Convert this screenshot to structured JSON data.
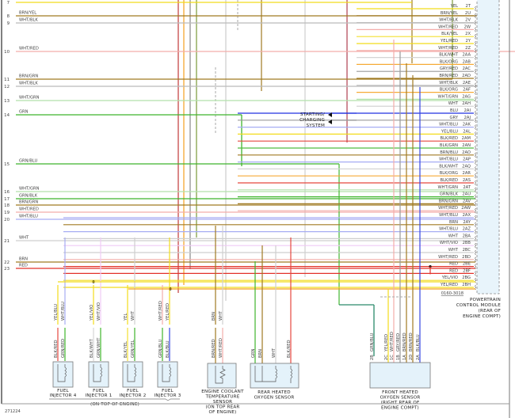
{
  "wire_colors": {
    "YEL": "#f2dc1a",
    "BRN": "#a07a22",
    "WHT": "#cfcfcf",
    "RED": "#e2322a",
    "BLK": "#555555",
    "GRN": "#3fb52c",
    "BLU": "#2030e0",
    "GRY": "#9a9a9a",
    "ORG": "#f5a020",
    "VIO": "#d87ae6"
  },
  "left_wires": [
    {
      "num": "7",
      "label": "",
      "color": "YEL"
    },
    {
      "num": "8",
      "label": "BRN/YEL",
      "color": "BRN/YEL"
    },
    {
      "num": "9",
      "label": "WHT/BLK",
      "color": "WHT/BLK"
    },
    {
      "num": "10",
      "label": "WHT/RED",
      "color": "WHT/RED"
    },
    {
      "num": "11",
      "label": "BRN/GRN",
      "color": "BRN/GRN"
    },
    {
      "num": "12",
      "label": "WHT/BLK",
      "color": "WHT/BLK"
    },
    {
      "num": "13",
      "label": "WHT/GRN",
      "color": "WHT/GRN"
    },
    {
      "num": "14",
      "label": "GRN",
      "color": "GRN"
    },
    {
      "num": "15",
      "label": "GRN/BLU",
      "color": "GRN/BLU"
    },
    {
      "num": "16",
      "label": "WHT/GRN",
      "color": "WHT/GRN"
    },
    {
      "num": "17",
      "label": "GRN/BLK",
      "color": "GRN/BLK"
    },
    {
      "num": "18",
      "label": "BRN/GRN",
      "color": "BRN/GRN"
    },
    {
      "num": "19",
      "label": "WHT/RED",
      "color": "WHT/RED"
    },
    {
      "num": "20",
      "label": "WHT/BLU",
      "color": "WHT/BLU"
    },
    {
      "num": "21",
      "label": "WHT",
      "color": "WHT"
    },
    {
      "num": "22",
      "label": "BRN",
      "color": "BRN"
    },
    {
      "num": "23",
      "label": "RED",
      "color": "RED"
    }
  ],
  "pcm": {
    "title": "POWERTRAIN",
    "title2": "CONTROL MODULE",
    "title3": "(REAR OF",
    "title4": "ENGINE COMPT)",
    "connector_id": "0160-3018",
    "pins": [
      {
        "pin": "2T",
        "wire": "YEL"
      },
      {
        "pin": "2U",
        "wire": "BRN/YEL"
      },
      {
        "pin": "2V",
        "wire": "WHT/BLK"
      },
      {
        "pin": "2W",
        "wire": "WHT/RED"
      },
      {
        "pin": "2X",
        "wire": "BLK/YEL"
      },
      {
        "pin": "2Y",
        "wire": "YEL/RED"
      },
      {
        "pin": "2Z",
        "wire": "WHT/RED"
      },
      {
        "pin": "2AA",
        "wire": "BLK/WHT"
      },
      {
        "pin": "2AB",
        "wire": "BLK/ORG"
      },
      {
        "pin": "2AC",
        "wire": "GRY/RED"
      },
      {
        "pin": "2AD",
        "wire": "BRN/RED"
      },
      {
        "pin": "2AE",
        "wire": "WHT/BLK"
      },
      {
        "pin": "2AF",
        "wire": "BLK/ORG"
      },
      {
        "pin": "2AG",
        "wire": "WHT/GRN"
      },
      {
        "pin": "2AH",
        "wire": "WHT"
      },
      {
        "pin": "2AI",
        "wire": "BLU"
      },
      {
        "pin": "2AJ",
        "wire": "GRY"
      },
      {
        "pin": "2AK",
        "wire": "WHT/BLU"
      },
      {
        "pin": "2AL",
        "wire": "YEL/BLU"
      },
      {
        "pin": "2AM",
        "wire": "BLK/RED"
      },
      {
        "pin": "2AN",
        "wire": "BLK/GRN"
      },
      {
        "pin": "2AO",
        "wire": "BRN/BLU"
      },
      {
        "pin": "2AP",
        "wire": "WHT/BLU"
      },
      {
        "pin": "2AQ",
        "wire": "BLK/WHT"
      },
      {
        "pin": "2AR",
        "wire": "BLK/ORG"
      },
      {
        "pin": "2AS",
        "wire": "BLK/RED"
      },
      {
        "pin": "2AT",
        "wire": "WHT/GRN"
      },
      {
        "pin": "2AU",
        "wire": "GRN/BLK"
      },
      {
        "pin": "2AV",
        "wire": "BRN/GRN"
      },
      {
        "pin": "2AW",
        "wire": "WHT/RED"
      },
      {
        "pin": "2AX",
        "wire": "WHT/BLU"
      },
      {
        "pin": "2AY",
        "wire": "BRN"
      },
      {
        "pin": "2AZ",
        "wire": "WHT/BLU"
      },
      {
        "pin": "2BA",
        "wire": "WHT"
      },
      {
        "pin": "2BB",
        "wire": "WHT/VIO"
      },
      {
        "pin": "2BC",
        "wire": "WHT"
      },
      {
        "pin": "2BD",
        "wire": "WHT/RED"
      },
      {
        "pin": "2BE",
        "wire": "RED"
      },
      {
        "pin": "2BF",
        "wire": "RED"
      },
      {
        "pin": "2BG",
        "wire": "YEL/VIO"
      },
      {
        "pin": "2BH",
        "wire": "YEL/RED"
      }
    ]
  },
  "starting_charging": {
    "line1": "STARTING/",
    "line2": "CHARGING",
    "line3": "SYSTEM"
  },
  "injectors": [
    {
      "name": "FUEL",
      "name2": "INJECTOR 4",
      "upper": [
        "YEL/BLU",
        "WHT/BLU"
      ],
      "lower": [
        "BLK/RED",
        "GRN/RED"
      ]
    },
    {
      "name": "FUEL",
      "name2": "INJECTOR 1",
      "upper": [
        "YEL/VIO",
        "WHT/VIO"
      ],
      "lower": [
        "BLK/WHT",
        "GRN/WHT"
      ]
    },
    {
      "name": "FUEL",
      "name2": "INJECTOR 2",
      "upper": [
        "YEL",
        "WHT"
      ],
      "lower": [
        "BLK/YEL",
        "GRN/YEL"
      ]
    },
    {
      "name": "FUEL",
      "name2": "INJECTOR 3",
      "upper": [
        "WHT/RED",
        "YEL/RED"
      ],
      "lower": [
        "GRN/BLU",
        "BLK/BLU"
      ]
    }
  ],
  "injector_location": "(ON TOP OF ENGINE)",
  "ect_sensor": {
    "lines": [
      "ENGINE COOLANT",
      "TEMPERATURE",
      "SENSOR",
      "(ON TOP REAR",
      "OF ENGINE)"
    ],
    "upper": [
      "BRN",
      "WHT"
    ],
    "lower": [
      "BRN/RED",
      "WHT/RED"
    ]
  },
  "rear_o2": {
    "lines": [
      "REAR HEATED",
      "OXYGEN SENSOR"
    ],
    "pins": [
      "GRN",
      "BRN",
      "WHT",
      "BLK/RED"
    ]
  },
  "front_o2": {
    "lines": [
      "FRONT HEATED",
      "OXYGEN SENSOR",
      "(RIGHT REAR OF",
      "ENGINE COMPT)"
    ],
    "pins": [
      {
        "pin": "2B",
        "wire": "GRN/BLU"
      },
      {
        "pin": "2C",
        "wire": "YEL/RED"
      },
      {
        "pin": "1C",
        "wire": "WHT/RED"
      },
      {
        "pin": "1B",
        "wire": "GRY/RED"
      },
      {
        "pin": "1A",
        "wire": "BRN/RED"
      },
      {
        "pin": "2D",
        "wire": "BRN/RED"
      },
      {
        "pin": "2A",
        "wire": "BLK/BLU"
      }
    ]
  },
  "figure_id": "271224"
}
